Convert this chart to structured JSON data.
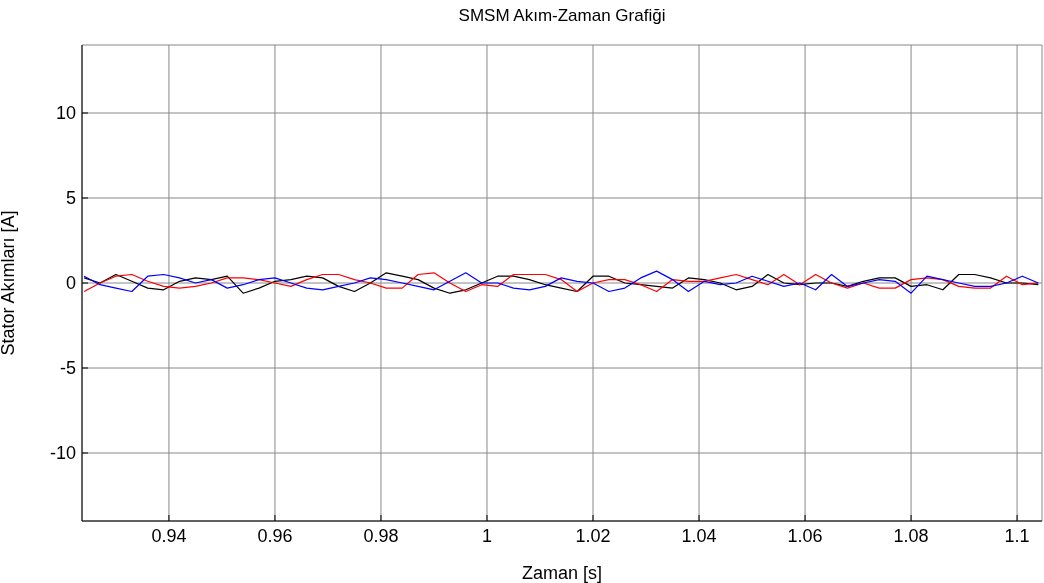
{
  "chart_data": {
    "type": "line",
    "title": "SMSM Akım-Zaman Grafiği",
    "xlabel": "Zaman [s]",
    "ylabel": "Stator Akımları [A]",
    "x": [
      0.924,
      0.927,
      0.93,
      0.933,
      0.936,
      0.939,
      0.942,
      0.945,
      0.948,
      0.951,
      0.954,
      0.957,
      0.96,
      0.963,
      0.966,
      0.969,
      0.972,
      0.975,
      0.978,
      0.981,
      0.984,
      0.987,
      0.99,
      0.993,
      0.996,
      0.999,
      1.002,
      1.005,
      1.008,
      1.011,
      1.014,
      1.017,
      1.02,
      1.023,
      1.026,
      1.029,
      1.032,
      1.035,
      1.038,
      1.041,
      1.044,
      1.047,
      1.05,
      1.053,
      1.056,
      1.059,
      1.062,
      1.065,
      1.068,
      1.071,
      1.074,
      1.077,
      1.08,
      1.083,
      1.086,
      1.089,
      1.092,
      1.095,
      1.098,
      1.101,
      1.104
    ],
    "series": [
      {
        "color": "#000000",
        "values": [
          0.3,
          0.0,
          0.5,
          0.1,
          -0.3,
          -0.4,
          0.1,
          0.3,
          0.2,
          0.4,
          -0.6,
          -0.3,
          0.1,
          0.2,
          0.4,
          0.3,
          -0.2,
          -0.5,
          0.0,
          0.6,
          0.4,
          0.2,
          -0.3,
          -0.6,
          -0.4,
          0.0,
          0.4,
          0.4,
          0.2,
          -0.1,
          -0.3,
          -0.5,
          0.4,
          0.4,
          0.0,
          -0.1,
          -0.2,
          -0.3,
          0.3,
          0.2,
          0.0,
          -0.4,
          -0.2,
          0.5,
          0.0,
          -0.1,
          0.0,
          0.0,
          -0.2,
          0.1,
          0.3,
          0.3,
          -0.2,
          -0.1,
          -0.4,
          0.5,
          0.5,
          0.3,
          0.0,
          0.0,
          -0.1
        ]
      },
      {
        "color": "#ff0000",
        "values": [
          -0.5,
          0.0,
          0.4,
          0.5,
          0.1,
          -0.2,
          -0.3,
          -0.2,
          0.0,
          0.3,
          0.3,
          0.2,
          0.0,
          -0.2,
          0.2,
          0.5,
          0.5,
          0.2,
          0.0,
          -0.3,
          -0.3,
          0.5,
          0.6,
          0.0,
          -0.5,
          -0.1,
          -0.2,
          0.5,
          0.5,
          0.5,
          0.2,
          -0.5,
          0.0,
          0.2,
          0.2,
          -0.1,
          -0.5,
          0.2,
          0.1,
          0.1,
          0.3,
          0.5,
          0.2,
          -0.1,
          0.5,
          -0.1,
          0.5,
          0.0,
          -0.3,
          0.0,
          -0.3,
          -0.3,
          0.2,
          0.3,
          0.2,
          -0.2,
          -0.3,
          -0.3,
          0.4,
          -0.1,
          0.0
        ]
      },
      {
        "color": "#0000ff",
        "values": [
          0.4,
          -0.1,
          -0.3,
          -0.5,
          0.4,
          0.5,
          0.3,
          0.0,
          0.2,
          -0.3,
          -0.1,
          0.2,
          0.3,
          0.0,
          -0.3,
          -0.4,
          -0.2,
          0.0,
          0.3,
          0.2,
          0.0,
          -0.2,
          -0.4,
          0.1,
          0.6,
          0.0,
          0.0,
          -0.3,
          -0.4,
          -0.2,
          0.3,
          0.1,
          0.0,
          -0.5,
          -0.3,
          0.3,
          0.7,
          0.2,
          -0.5,
          0.1,
          -0.1,
          0.0,
          0.4,
          0.1,
          -0.2,
          0.0,
          -0.4,
          0.5,
          -0.2,
          0.0,
          0.2,
          0.1,
          -0.6,
          0.4,
          0.2,
          0.0,
          -0.2,
          -0.2,
          0.0,
          0.4,
          0.0
        ]
      }
    ],
    "xlim": [
      0.9236,
      1.1047
    ],
    "xticks": [
      0.94,
      0.96,
      0.98,
      1,
      1.02,
      1.04,
      1.06,
      1.08,
      1.1
    ],
    "ylim": [
      -14,
      14
    ],
    "yticks": [
      -10,
      -5,
      0,
      5,
      10
    ],
    "grid": true,
    "legend": false,
    "marker": "none",
    "line_style": "solid"
  }
}
